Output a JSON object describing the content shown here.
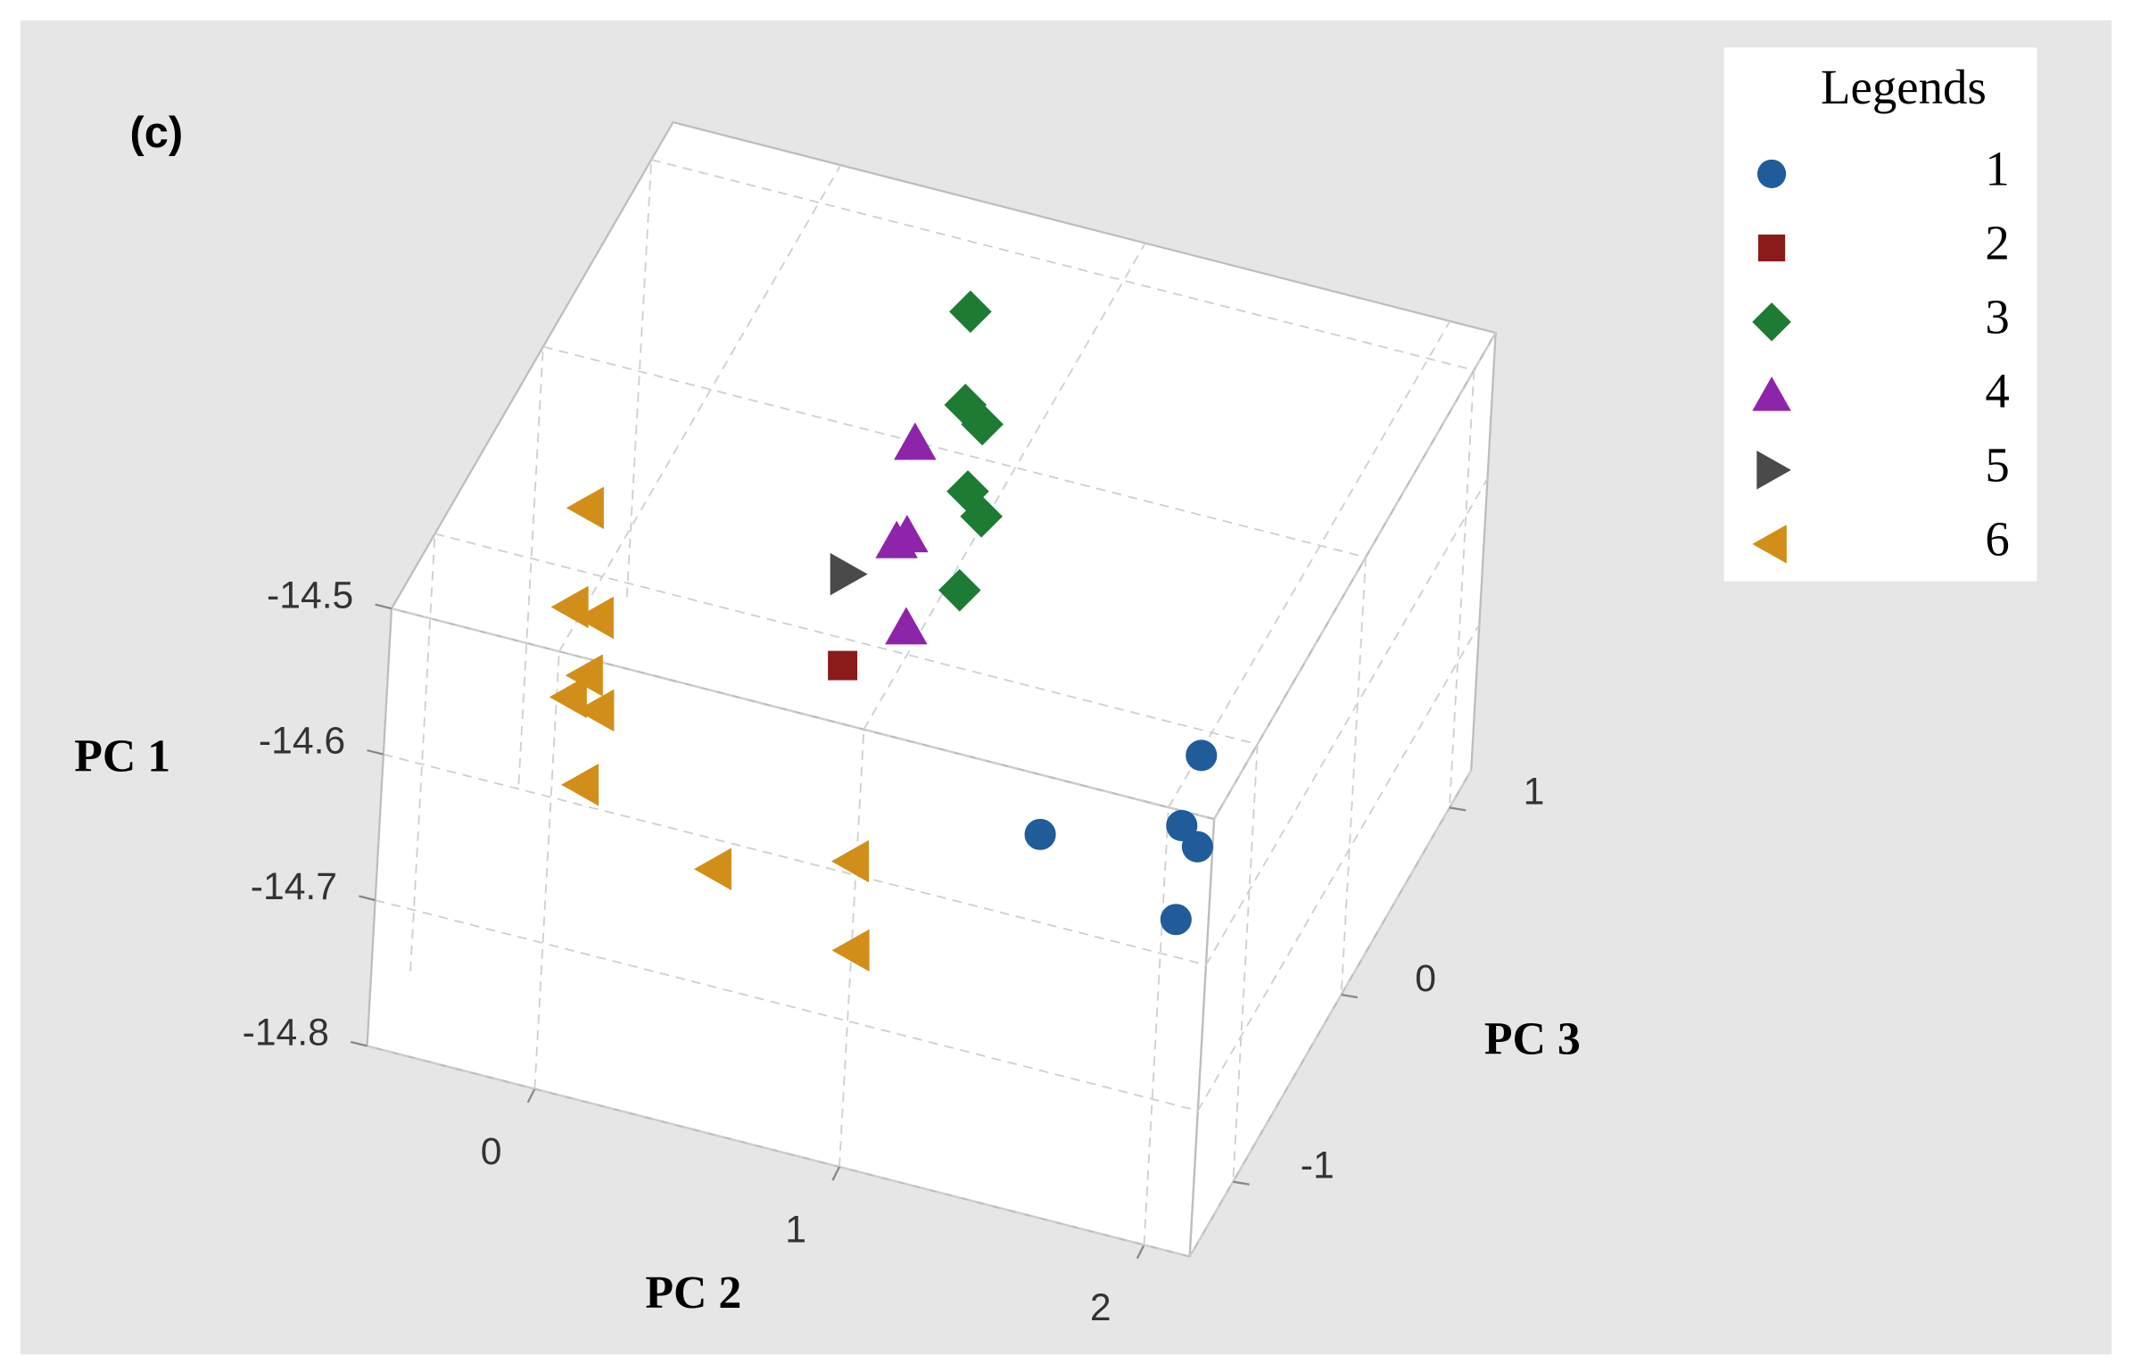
{
  "chart_data": {
    "type": "scatter3d",
    "panel_label": "(c)",
    "x_label": "PC 2",
    "y_label": "PC 1",
    "z_label": "PC 3",
    "xlim": [
      -0.55,
      2.15
    ],
    "ylim": [
      -14.8,
      -14.5
    ],
    "zlim": [
      -1.4,
      1.2
    ],
    "xticks": [
      0,
      1,
      2
    ],
    "yticks": [
      -14.5,
      -14.6,
      -14.7,
      -14.8
    ],
    "zticks": [
      -1,
      0,
      1
    ],
    "grid": true,
    "legend_title": "Legends",
    "legend_position": "upper right",
    "series": [
      {
        "name": "1",
        "color": "#1f5c99",
        "marker": "circle",
        "x": [
          1.79,
          1.46,
          1.85,
          1.93,
          1.88
        ],
        "y": [
          -14.6,
          -14.6,
          -14.6,
          -14.6,
          -14.65
        ],
        "z": [
          -0.43,
          -0.99,
          -0.78,
          -0.86,
          -0.88
        ]
      },
      {
        "name": "2",
        "color": "#8b1a1a",
        "marker": "square",
        "x": [
          0.79
        ],
        "y": [
          -14.52
        ],
        "z": [
          -0.99
        ]
      },
      {
        "name": "3",
        "color": "#1e7b34",
        "marker": "diamond",
        "x": [
          0.57,
          0.71,
          0.79,
          0.86,
          0.94,
          1.0
        ],
        "y": [
          -14.52,
          -14.52,
          -14.52,
          -14.52,
          -14.52,
          -14.52
        ],
        "z": [
          0.81,
          0.37,
          0.3,
          -0.03,
          -0.13,
          -0.5
        ]
      },
      {
        "name": "4",
        "color": "#8e24aa",
        "marker": "triangle-up",
        "x": [
          0.63,
          0.76,
          0.74,
          0.91
        ],
        "y": [
          -14.52,
          -14.52,
          -14.52,
          -14.52
        ],
        "z": [
          0.13,
          -0.31,
          -0.35,
          -0.74
        ]
      },
      {
        "name": "5",
        "color": "#4a4a4a",
        "marker": "triangle-right",
        "x": [
          0.65
        ],
        "y": [
          -14.52
        ],
        "z": [
          -0.56
        ]
      },
      {
        "name": "6",
        "color": "#d18f1a",
        "marker": "triangle-left",
        "x": [
          -0.2,
          -0.08,
          0.01,
          -0.1,
          -0.11,
          -0.01,
          -0.04,
          0.37,
          0.75,
          0.79
        ],
        "y": [
          -14.52,
          -14.52,
          -14.52,
          -14.6,
          -14.6,
          -14.6,
          -14.65,
          -14.7,
          -14.7,
          -14.75
        ],
        "z": [
          -0.56,
          -1.04,
          -1.06,
          -0.79,
          -0.91,
          -0.94,
          -0.96,
          -0.85,
          -0.65,
          -0.72
        ]
      }
    ]
  }
}
